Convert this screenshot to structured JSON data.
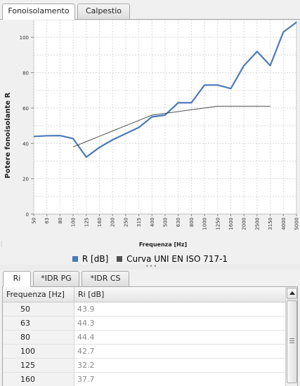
{
  "top_tabs": [
    {
      "label": "Fonoisolamento",
      "active": true
    },
    {
      "label": "Calpestio",
      "active": false
    }
  ],
  "chart_data": {
    "type": "line",
    "ylabel": "Potere fonoisolante R",
    "xlabel": "Frequenza [Hz]",
    "x": [
      "50",
      "63",
      "80",
      "100",
      "125",
      "160",
      "200",
      "250",
      "315",
      "400",
      "500",
      "630",
      "800",
      "1000",
      "1250",
      "1600",
      "2000",
      "2500",
      "3150",
      "4000",
      "5000"
    ],
    "ylim": [
      0,
      110
    ],
    "yticks": [
      0,
      20,
      40,
      60,
      80,
      100
    ],
    "grid": true,
    "legend_position": "bottom",
    "series": [
      {
        "name": "R [dB]",
        "color": "#4a7ab8",
        "values": [
          43.9,
          44.3,
          44.4,
          42.7,
          32.2,
          37.7,
          42.0,
          45.5,
          49.0,
          55.0,
          56.0,
          63.0,
          63.0,
          73.0,
          73.0,
          71.0,
          84.0,
          92.0,
          84.0,
          103.0,
          108.5
        ]
      },
      {
        "name": "Curva UNI EN ISO 717-1",
        "color": "#505050",
        "values": [
          null,
          null,
          null,
          38.0,
          41.0,
          44.0,
          47.0,
          50.0,
          53.0,
          56.0,
          57.0,
          58.0,
          59.0,
          60.0,
          61.0,
          61.0,
          61.0,
          61.0,
          61.0,
          null,
          null
        ]
      }
    ]
  },
  "bottom_tabs": [
    {
      "label": "Ri",
      "active": true
    },
    {
      "label": "*IDR PG",
      "active": false
    },
    {
      "label": "*IDR CS",
      "active": false
    }
  ],
  "table": {
    "columns": [
      "Frequenza [Hz]",
      "Ri [dB]"
    ],
    "rows": [
      [
        "50",
        "43.9"
      ],
      [
        "63",
        "44.3"
      ],
      [
        "80",
        "44.4"
      ],
      [
        "100",
        "42.7"
      ],
      [
        "125",
        "32.2"
      ],
      [
        "160",
        "37.7"
      ]
    ]
  },
  "colors": {
    "r_series": "#4a7ab8",
    "curve_series": "#505050",
    "plot_background": "#ffffff",
    "grid": "#d8d8d8"
  },
  "icons": {
    "scroll_up": "chevron-up-icon",
    "scroll_thumb_grip": "grip-lines-icon",
    "splitter_grip": "drag-dots-icon"
  }
}
